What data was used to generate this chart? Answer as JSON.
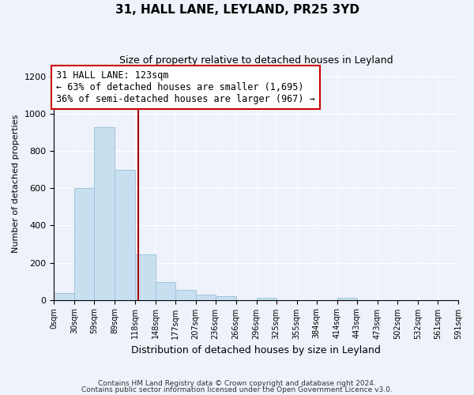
{
  "title": "31, HALL LANE, LEYLAND, PR25 3YD",
  "subtitle": "Size of property relative to detached houses in Leyland",
  "xlabel": "Distribution of detached houses by size in Leyland",
  "ylabel": "Number of detached properties",
  "bar_color": "#c8dff0",
  "bar_edge_color": "#a0c4d8",
  "background_color": "#eef2fb",
  "bin_edges": [
    0,
    30,
    59,
    89,
    118,
    148,
    177,
    207,
    236,
    266,
    296,
    325,
    355,
    384,
    414,
    443,
    473,
    502,
    532,
    561,
    591
  ],
  "bar_heights": [
    35,
    600,
    930,
    700,
    245,
    95,
    55,
    30,
    18,
    0,
    10,
    0,
    0,
    0,
    10,
    0,
    0,
    0,
    0,
    0
  ],
  "tick_labels": [
    "0sqm",
    "30sqm",
    "59sqm",
    "89sqm",
    "118sqm",
    "148sqm",
    "177sqm",
    "207sqm",
    "236sqm",
    "266sqm",
    "296sqm",
    "325sqm",
    "355sqm",
    "384sqm",
    "414sqm",
    "443sqm",
    "473sqm",
    "502sqm",
    "532sqm",
    "561sqm",
    "591sqm"
  ],
  "vline_x": 123,
  "annotation_title": "31 HALL LANE: 123sqm",
  "annotation_line1": "← 63% of detached houses are smaller (1,695)",
  "annotation_line2": "36% of semi-detached houses are larger (967) →",
  "annotation_box_color": "#ffffff",
  "annotation_box_edge": "#cc0000",
  "vline_color": "#aa0000",
  "ylim": [
    0,
    1250
  ],
  "yticks": [
    0,
    200,
    400,
    600,
    800,
    1000,
    1200
  ],
  "footer1": "Contains HM Land Registry data © Crown copyright and database right 2024.",
  "footer2": "Contains public sector information licensed under the Open Government Licence v3.0."
}
